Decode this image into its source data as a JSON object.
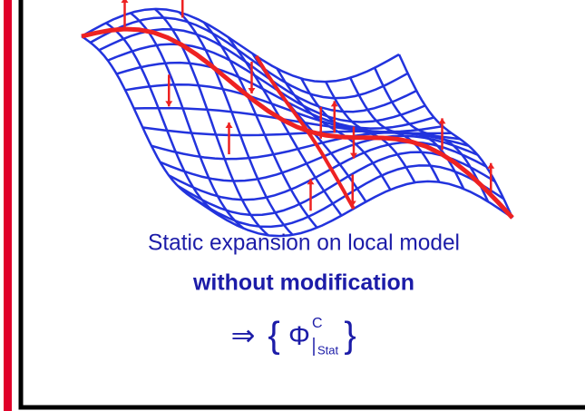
{
  "caption": "Static expansion on local model",
  "emphasis": "without modification",
  "formula": {
    "arrow": "⇒",
    "symbol": "Φ",
    "superscript": "C",
    "subscript": "Stat"
  }
}
